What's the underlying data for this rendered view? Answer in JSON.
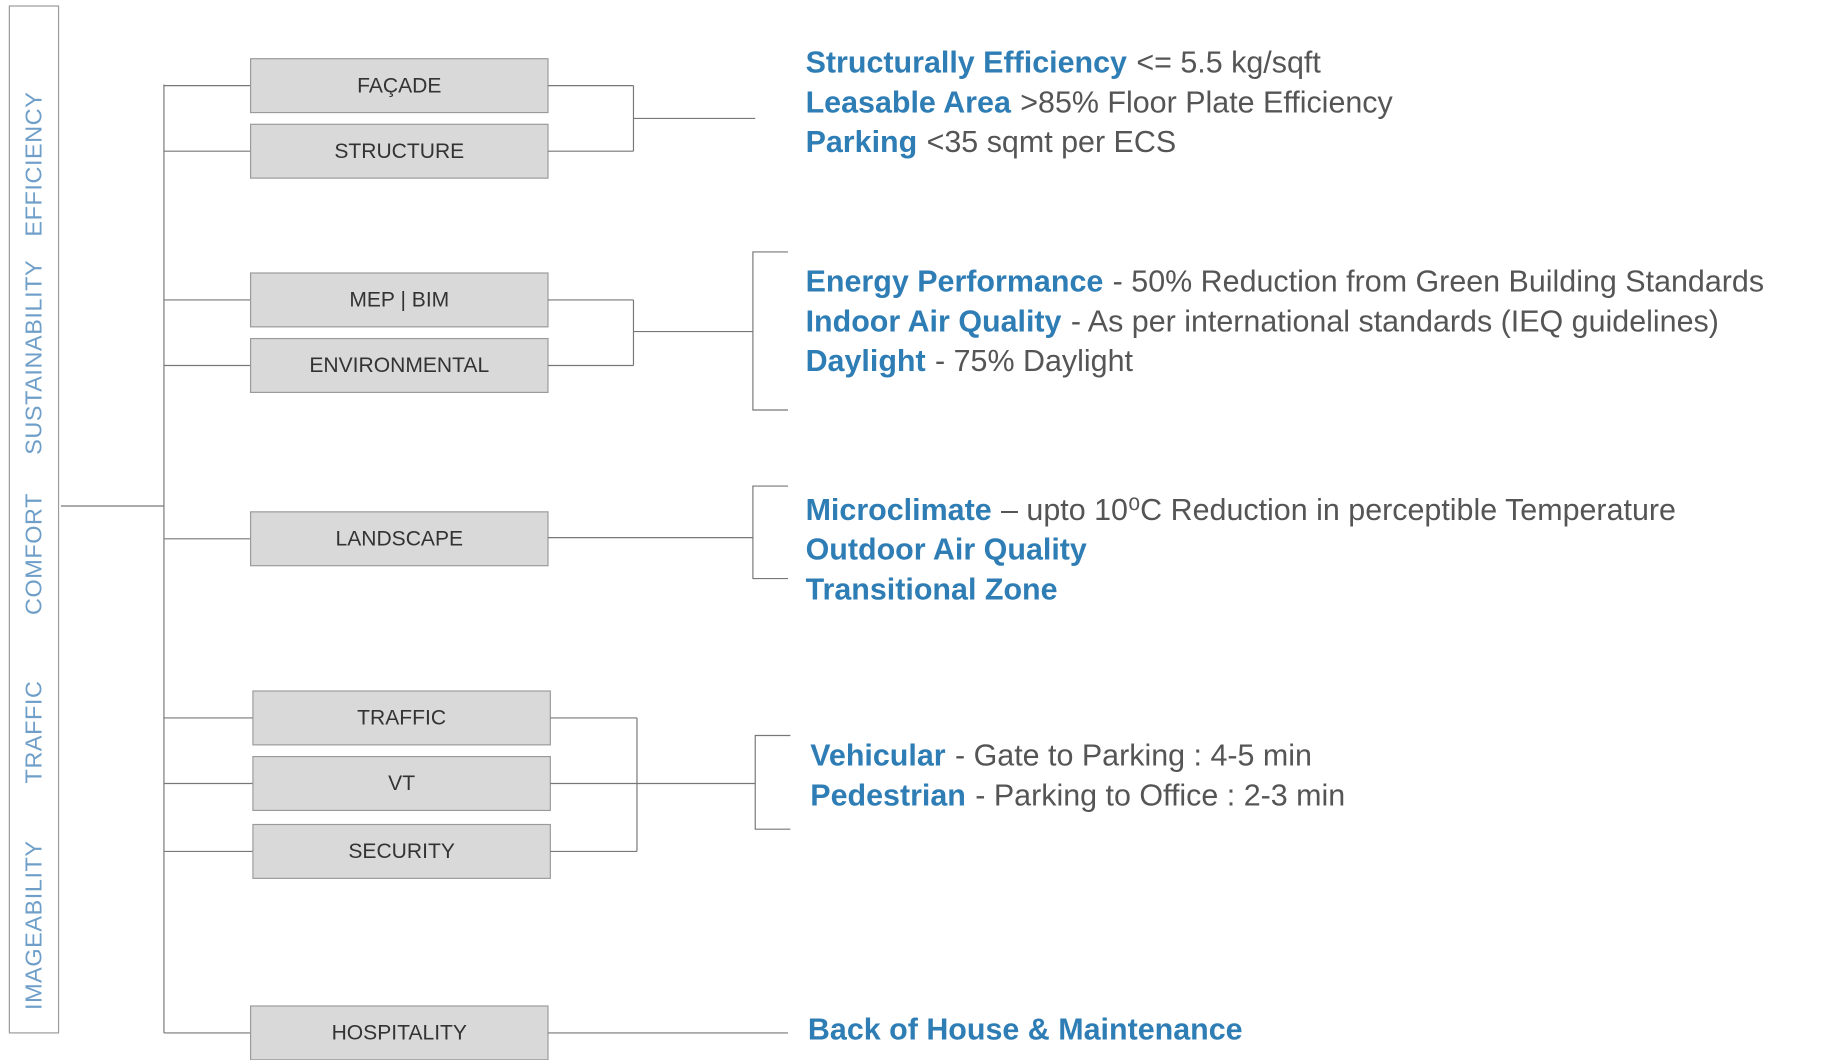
{
  "sidebar": [
    "EFFICIENCY",
    "SUSTAINABILITY",
    "COMFORT",
    "TRAFFIC",
    "IMAGEABILITY"
  ],
  "groups": [
    {
      "boxes": [
        "FAÇADE",
        "STRUCTURE"
      ],
      "criteria": [
        {
          "term": "Structurally Efficiency",
          "detail": "<= 5.5 kg/sqft"
        },
        {
          "term": "Leasable Area",
          "detail": ">85% Floor Plate Efficiency"
        },
        {
          "term": "Parking",
          "detail": "<35 sqmt per ECS"
        }
      ]
    },
    {
      "boxes": [
        "MEP | BIM",
        "ENVIRONMENTAL"
      ],
      "criteria": [
        {
          "term": "Energy Performance",
          "detail": "- 50% Reduction from Green Building Standards"
        },
        {
          "term": "Indoor Air Quality",
          "detail": "- As per international standards (IEQ guidelines)"
        },
        {
          "term": "Daylight",
          "detail": "- 75% Daylight"
        }
      ]
    },
    {
      "boxes": [
        "LANDSCAPE"
      ],
      "criteria": [
        {
          "term": "Microclimate",
          "detail": "– upto 10⁰C Reduction in perceptible Temperature"
        },
        {
          "term": "Outdoor Air Quality"
        },
        {
          "term": "Transitional Zone"
        }
      ]
    },
    {
      "boxes": [
        "TRAFFIC",
        "VT",
        "SECURITY"
      ],
      "criteria": [
        {
          "term": "Vehicular",
          "detail": "- Gate to Parking : 4-5 min"
        },
        {
          "term": "Pedestrian",
          "detail": "- Parking to Office : 2-3 min"
        }
      ]
    },
    {
      "boxes": [
        "HOSPITALITY"
      ],
      "criteria": [
        {
          "term": "Back of House & Maintenance"
        }
      ]
    }
  ]
}
